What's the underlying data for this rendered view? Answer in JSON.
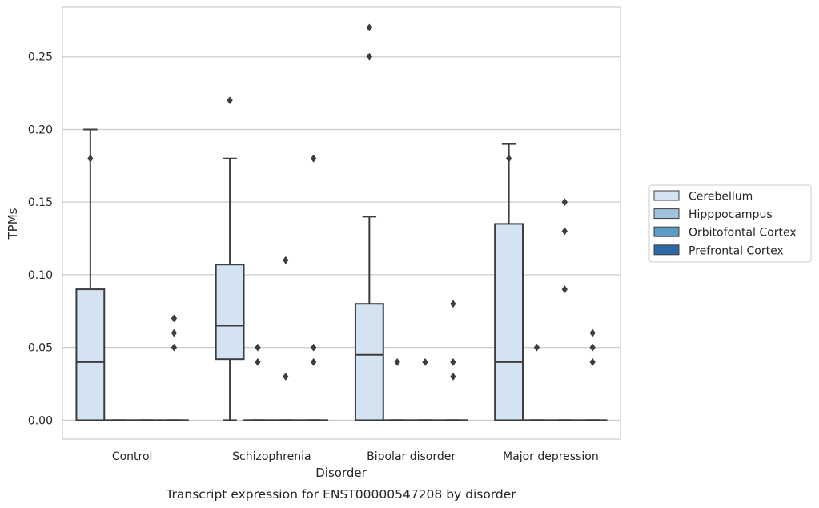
{
  "chart_data": {
    "type": "box",
    "title": "",
    "caption": "Transcript expression for ENST00000547208 by disorder",
    "xlabel": "Disorder",
    "ylabel": "TPMs",
    "ylim": [
      -0.013,
      0.284
    ],
    "yticks": [
      "0.00",
      "0.05",
      "0.10",
      "0.15",
      "0.20",
      "0.25"
    ],
    "ytick_values": [
      0,
      0.05,
      0.1,
      0.15,
      0.2,
      0.25
    ],
    "grid": "horizontal",
    "legend_position": "right",
    "categories": [
      "Control",
      "Schizophrenia",
      "Bipolar disorder",
      "Major depression"
    ],
    "series": [
      {
        "name": "Cerebellum",
        "color": "#d4e3f2",
        "boxes": [
          {
            "whislo": 0,
            "q1": 0,
            "med": 0.04,
            "q3": 0.09,
            "whishi": 0.2,
            "fliers": [
              0.18
            ]
          },
          {
            "whislo": 0,
            "q1": 0.042,
            "med": 0.065,
            "q3": 0.107,
            "whishi": 0.18,
            "fliers": [
              0.22
            ]
          },
          {
            "whislo": 0,
            "q1": 0,
            "med": 0.045,
            "q3": 0.08,
            "whishi": 0.14,
            "fliers": [
              0.25,
              0.27
            ]
          },
          {
            "whislo": 0,
            "q1": 0,
            "med": 0.04,
            "q3": 0.135,
            "whishi": 0.19,
            "fliers": [
              0.18
            ]
          }
        ]
      },
      {
        "name": "Hipppocampus",
        "color": "#9fc3dd",
        "boxes": [
          {
            "whislo": 0,
            "q1": 0,
            "med": 0,
            "q3": 0,
            "whishi": 0,
            "fliers": []
          },
          {
            "whislo": 0,
            "q1": 0,
            "med": 0,
            "q3": 0,
            "whishi": 0,
            "fliers": [
              0.04,
              0.05
            ]
          },
          {
            "whislo": 0,
            "q1": 0,
            "med": 0,
            "q3": 0,
            "whishi": 0,
            "fliers": [
              0.04
            ]
          },
          {
            "whislo": 0,
            "q1": 0,
            "med": 0,
            "q3": 0,
            "whishi": 0,
            "fliers": [
              0.05
            ]
          }
        ]
      },
      {
        "name": "Orbitofontal Cortex",
        "color": "#5b9bc6",
        "boxes": [
          {
            "whislo": 0,
            "q1": 0,
            "med": 0,
            "q3": 0,
            "whishi": 0,
            "fliers": []
          },
          {
            "whislo": 0,
            "q1": 0,
            "med": 0,
            "q3": 0,
            "whishi": 0,
            "fliers": [
              0.03,
              0.11
            ]
          },
          {
            "whislo": 0,
            "q1": 0,
            "med": 0,
            "q3": 0,
            "whishi": 0,
            "fliers": [
              0.04
            ]
          },
          {
            "whislo": 0,
            "q1": 0,
            "med": 0,
            "q3": 0,
            "whishi": 0,
            "fliers": [
              0.09,
              0.13,
              0.15
            ]
          }
        ]
      },
      {
        "name": "Prefrontal Cortex",
        "color": "#2b6aa6",
        "boxes": [
          {
            "whislo": 0,
            "q1": 0,
            "med": 0,
            "q3": 0,
            "whishi": 0,
            "fliers": [
              0.05,
              0.06,
              0.07
            ]
          },
          {
            "whislo": 0,
            "q1": 0,
            "med": 0,
            "q3": 0,
            "whishi": 0,
            "fliers": [
              0.04,
              0.05,
              0.18
            ]
          },
          {
            "whislo": 0,
            "q1": 0,
            "med": 0,
            "q3": 0,
            "whishi": 0,
            "fliers": [
              0.03,
              0.04,
              0.08
            ]
          },
          {
            "whislo": 0,
            "q1": 0,
            "med": 0,
            "q3": 0,
            "whishi": 0,
            "fliers": [
              0.04,
              0.05,
              0.06
            ]
          }
        ]
      }
    ]
  }
}
